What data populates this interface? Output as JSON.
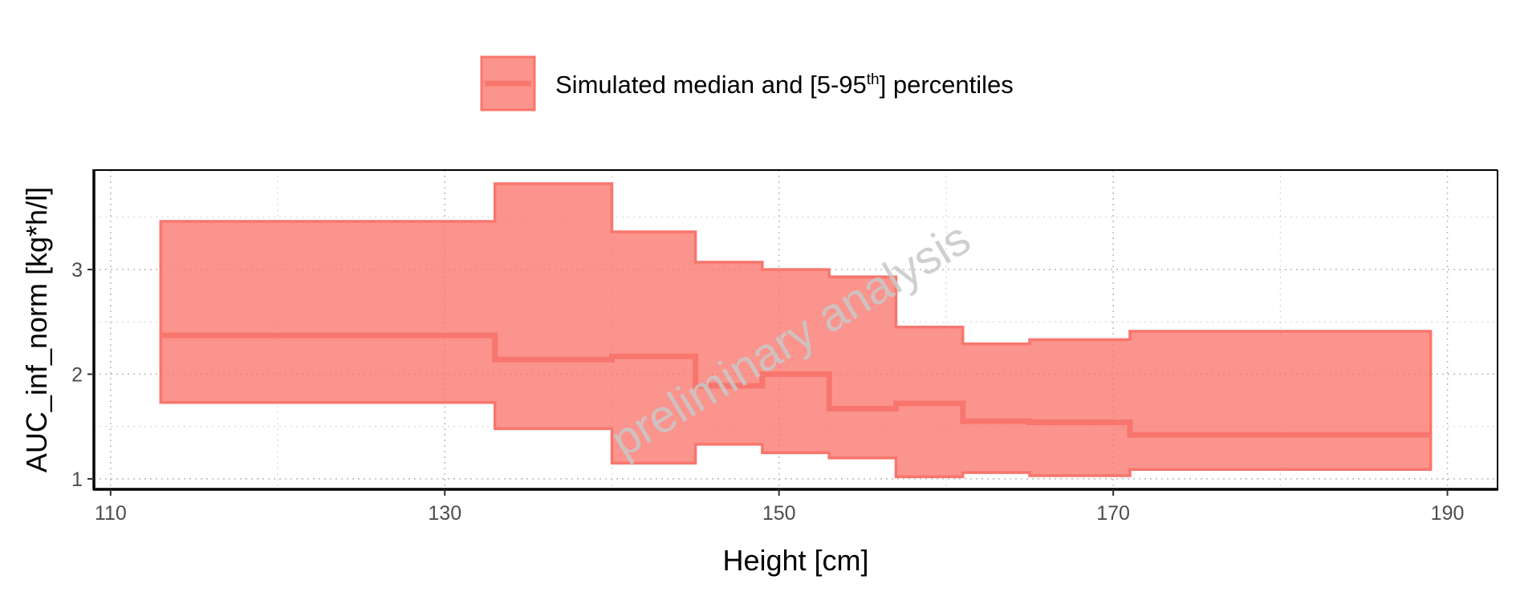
{
  "chart_data": {
    "type": "area",
    "xlabel": "Height [cm]",
    "ylabel": "AUC_inf_norm [kg*h/l]",
    "xlim": [
      109,
      193
    ],
    "ylim": [
      0.9,
      3.95
    ],
    "x_ticks": [
      110,
      130,
      150,
      170,
      190
    ],
    "y_ticks": [
      1,
      2,
      3
    ],
    "grid": true,
    "legend_position": "top",
    "legend": {
      "text_before": "Simulated median and [5-95",
      "superscript": "th",
      "text_after": "] percentiles"
    },
    "watermark": "preliminary analysis",
    "series_color": "#F8766D",
    "x_edges": [
      113,
      133,
      140,
      145,
      149,
      153,
      157,
      161,
      165,
      171,
      189
    ],
    "series": [
      {
        "name": "median",
        "values": [
          2.37,
          2.14,
          2.17,
          1.89,
          2.0,
          1.67,
          1.72,
          1.55,
          1.54,
          1.42
        ]
      },
      {
        "name": "5th percentile",
        "values": [
          1.73,
          1.48,
          1.15,
          1.33,
          1.25,
          1.2,
          1.02,
          1.06,
          1.03,
          1.09
        ]
      },
      {
        "name": "95th percentile",
        "values": [
          3.46,
          3.82,
          3.36,
          3.07,
          3.0,
          2.93,
          2.45,
          2.29,
          2.33,
          2.41
        ]
      }
    ]
  }
}
